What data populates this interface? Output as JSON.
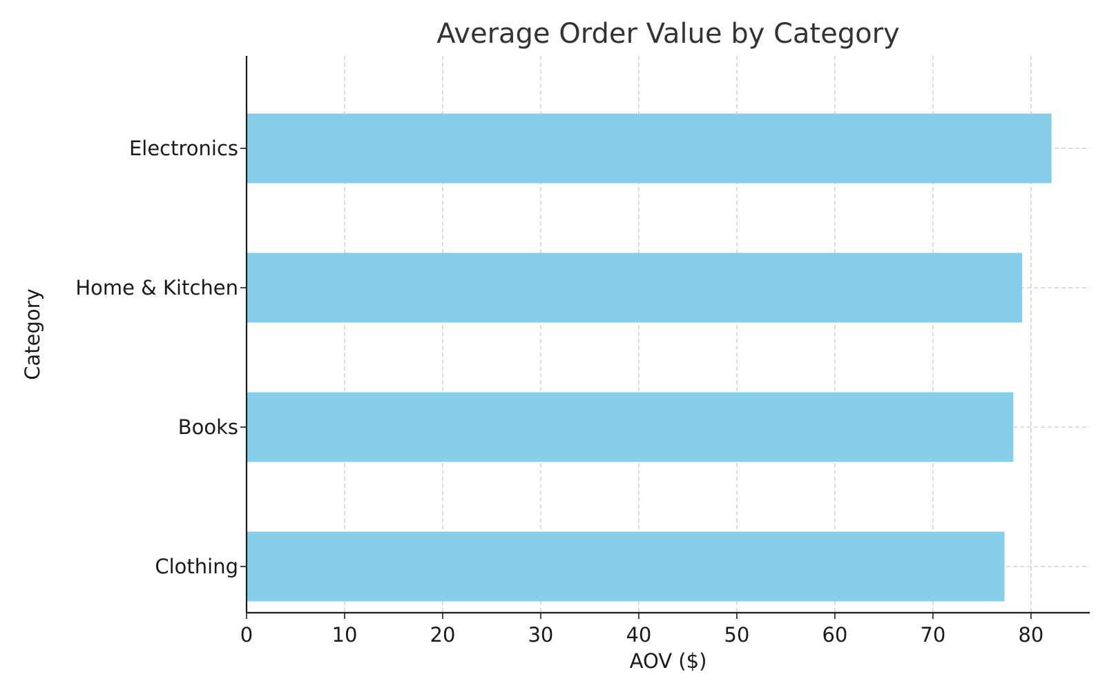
{
  "chart_data": {
    "type": "bar",
    "orientation": "horizontal",
    "title": "Average Order Value by Category",
    "xlabel": "AOV ($)",
    "ylabel": "Category",
    "categories": [
      "Electronics",
      "Home & Kitchen",
      "Books",
      "Clothing"
    ],
    "values": [
      82.1,
      79.1,
      78.2,
      77.3
    ],
    "xlim": [
      0,
      86
    ],
    "xticks": [
      0,
      10,
      20,
      30,
      40,
      50,
      60,
      70,
      80
    ],
    "grid": true,
    "bar_color": "#87CEEB"
  }
}
